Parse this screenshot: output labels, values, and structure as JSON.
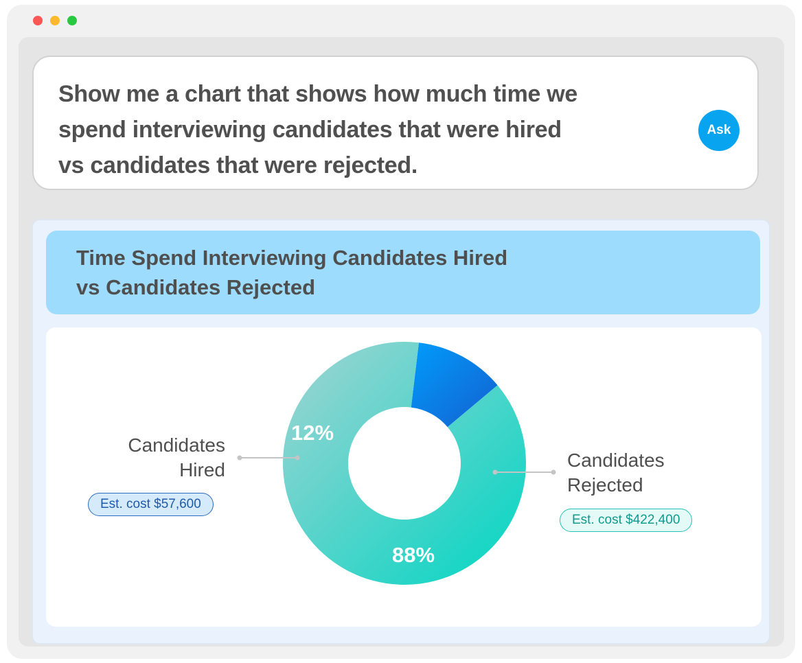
{
  "prompt": {
    "lines": [
      "Show me a chart that shows how much time we",
      "spend interviewing candidates that were hired",
      "vs candidates that were rejected."
    ],
    "ask_label": "Ask"
  },
  "chart_data": {
    "type": "pie",
    "title_lines": [
      "Time Spend Interviewing Candidates Hired",
      "vs Candidates Rejected"
    ],
    "slices": [
      {
        "name_lines": [
          "Candidates",
          "Hired"
        ],
        "value": 12,
        "label": "12%",
        "est_cost": "Est. cost $57,600",
        "color_from": "#009cfb",
        "color_to": "#1560cf"
      },
      {
        "name_lines": [
          "Candidates",
          "Rejected"
        ],
        "value": 88,
        "label": "88%",
        "est_cost": "Est. cost $422,400",
        "color_from": "#a3d3d2",
        "color_to": "#00d6c3"
      }
    ],
    "donut": true
  },
  "colors": {
    "ask_button": "#08a4ef",
    "title_band": "#9ddcfc",
    "leader_line": "#c4c4c4",
    "window_dots": [
      "#fc5755",
      "#fdb92e",
      "#28c940"
    ]
  }
}
